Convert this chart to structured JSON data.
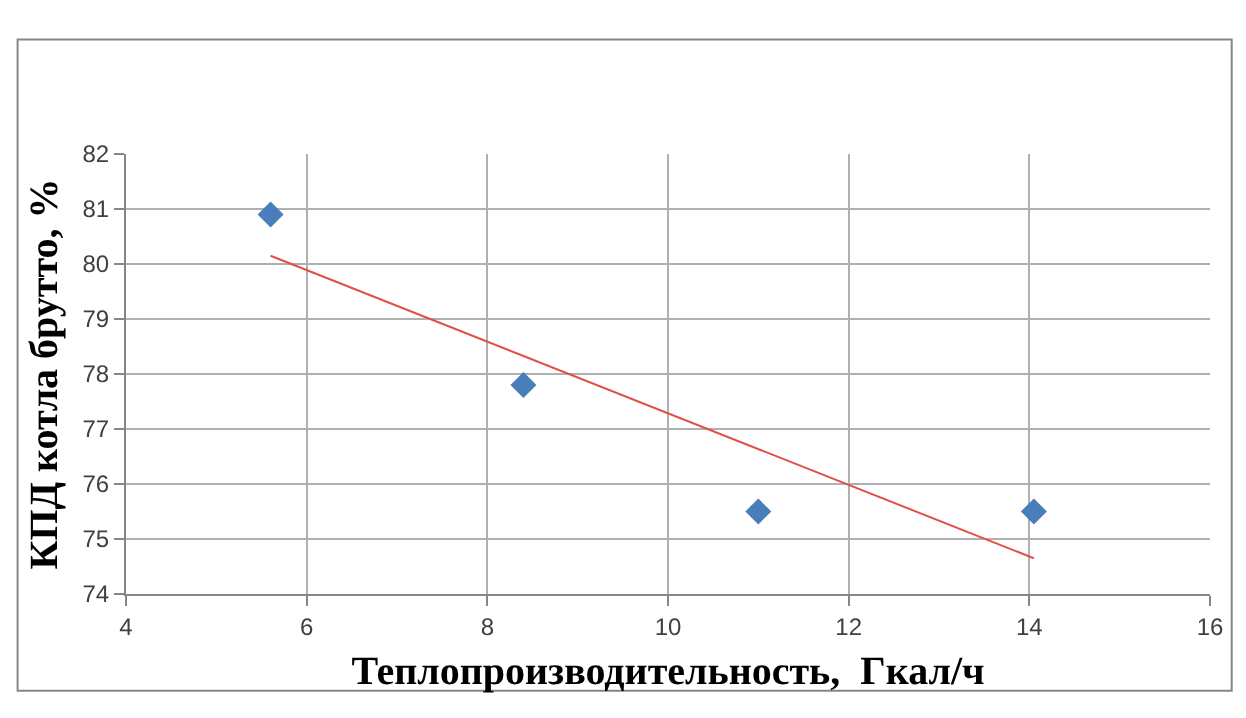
{
  "chart_data": {
    "type": "scatter",
    "xlabel": "Теплопроизводительность,  Гкал/ч",
    "ylabel": "КПД котла брутто, %",
    "xlim": [
      4,
      16
    ],
    "xticks": [
      4,
      6,
      8,
      10,
      12,
      14,
      16
    ],
    "ylim": [
      74,
      82
    ],
    "yticks": [
      74,
      75,
      76,
      77,
      78,
      79,
      80,
      81,
      82
    ],
    "grid": true,
    "marker": "diamond",
    "series": [
      {
        "color": "#4a7ebb",
        "x": [
          5.6,
          8.4,
          11.0,
          14.05
        ],
        "values": [
          80.9,
          77.8,
          75.5,
          75.5
        ]
      },
      {
        "type": "line",
        "marker": "none",
        "color": "#e0504a",
        "x": [
          5.6,
          14.05
        ],
        "values": [
          80.15,
          74.65
        ]
      }
    ]
  }
}
